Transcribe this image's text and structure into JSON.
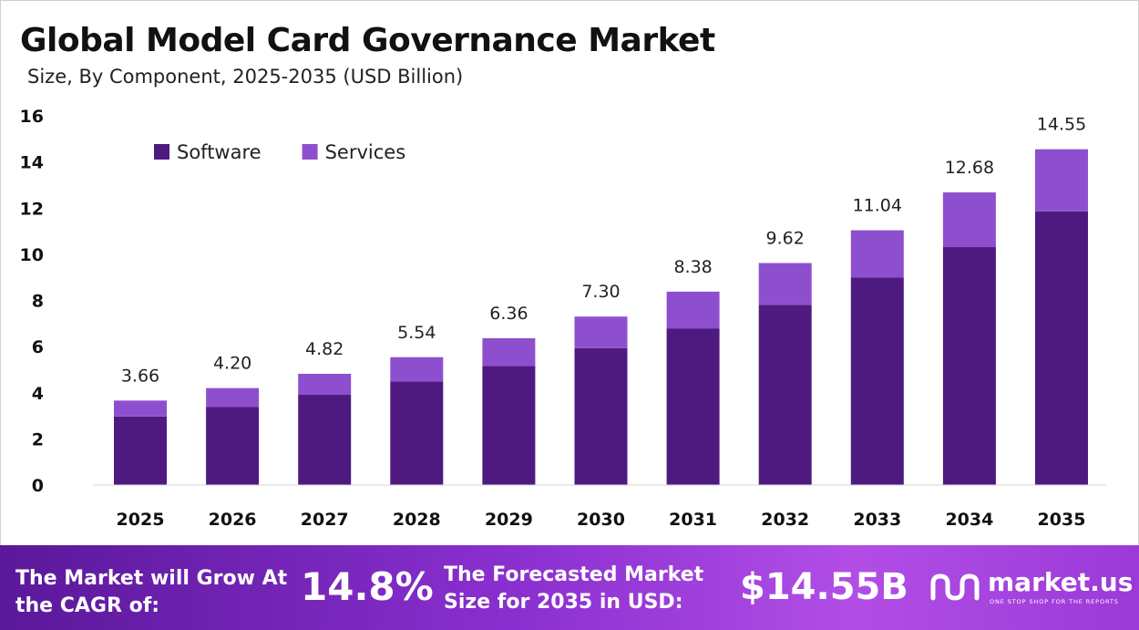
{
  "header": {
    "title": "Global Model Card Governance Market",
    "subtitle": "Size, By Component, 2025-2035 (USD Billion)"
  },
  "chart_data": {
    "type": "bar",
    "stacked": true,
    "categories": [
      "2025",
      "2026",
      "2027",
      "2028",
      "2029",
      "2030",
      "2031",
      "2032",
      "2033",
      "2034",
      "2035"
    ],
    "series": [
      {
        "name": "Software",
        "color": "#4e1a80",
        "values": [
          2.97,
          3.39,
          3.91,
          4.49,
          5.16,
          5.93,
          6.79,
          7.81,
          8.99,
          10.31,
          11.86
        ]
      },
      {
        "name": "Services",
        "color": "#8e4fcf",
        "values": [
          0.69,
          0.81,
          0.91,
          1.05,
          1.2,
          1.37,
          1.59,
          1.81,
          2.05,
          2.37,
          2.69
        ]
      }
    ],
    "totals": [
      "3.66",
      "4.20",
      "4.82",
      "5.54",
      "6.36",
      "7.30",
      "8.38",
      "9.62",
      "11.04",
      "12.68",
      "14.55"
    ],
    "yticks": [
      "0",
      "2",
      "4",
      "6",
      "8",
      "10",
      "12",
      "14",
      "16"
    ],
    "ylim": [
      0,
      16
    ],
    "xlabel": "",
    "ylabel": "",
    "grid": false,
    "legend_position": "top-left"
  },
  "footer": {
    "grow_text": "The Market will Grow At the CAGR of:",
    "cagr_value": "14.8%",
    "forecast_text": "The Forecasted Market Size for 2035 in USD:",
    "forecast_value": "$14.55B",
    "brand_name": "market.us",
    "brand_tagline": "ONE STOP SHOP FOR THE REPORTS",
    "brand_icon": "market-us-logo-icon"
  }
}
